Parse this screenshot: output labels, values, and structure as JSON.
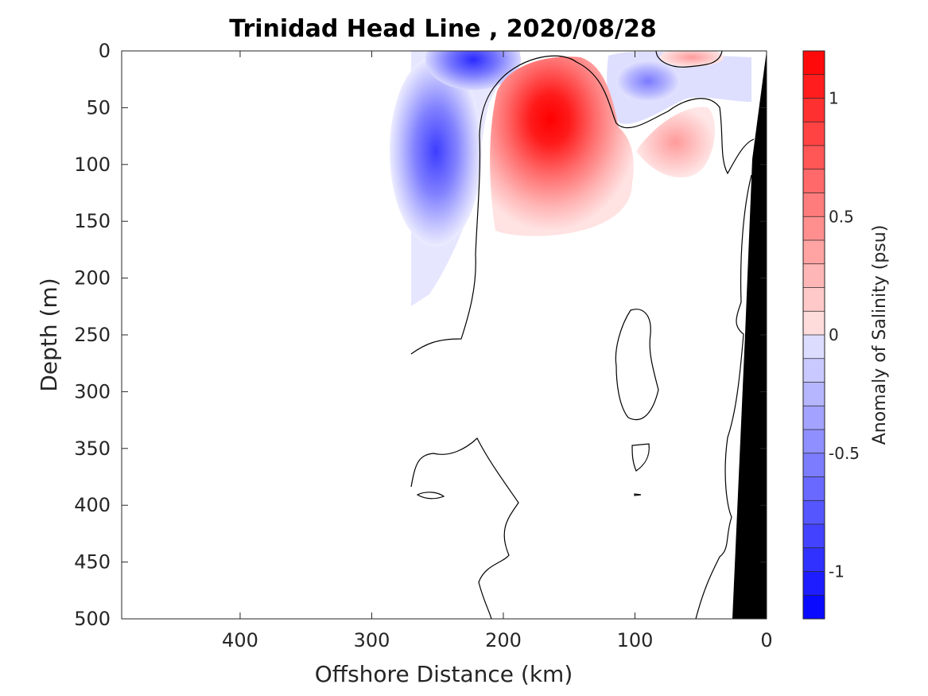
{
  "chart_data": {
    "type": "heatmap",
    "title": "Trinidad Head Line , 2020/08/28",
    "xlabel": "Offshore Distance (km)",
    "ylabel": "Depth (m)",
    "xlim": [
      490,
      0
    ],
    "ylim": [
      500,
      0
    ],
    "x_ticks": [
      "400",
      "300",
      "200",
      "100",
      "0"
    ],
    "y_ticks": [
      "0",
      "50",
      "100",
      "150",
      "200",
      "250",
      "300",
      "350",
      "400",
      "450",
      "500"
    ],
    "colorbar": {
      "label": "Anomaly of Salinity (psu)",
      "range": [
        -1.2,
        1.2
      ],
      "levels": 24,
      "ticks": [
        "1",
        "0.5",
        "0",
        "-0.5",
        "-1"
      ],
      "colors": {
        "negative": "#0000ff",
        "zero": "#ffffff",
        "positive": "#ff0000"
      }
    },
    "data_extent_km": [
      270,
      0
    ],
    "features": [
      {
        "sign": "negative",
        "center_km": 250,
        "center_depth_m": 85,
        "peak": -0.85
      },
      {
        "sign": "negative",
        "center_km": 215,
        "center_depth_m": 5,
        "peak": -0.9
      },
      {
        "sign": "negative",
        "center_km": 90,
        "center_depth_m": 25,
        "peak": -0.55
      },
      {
        "sign": "positive",
        "center_km": 170,
        "center_depth_m": 70,
        "peak": 1.15
      },
      {
        "sign": "positive",
        "center_km": 60,
        "center_depth_m": 5,
        "peak": 0.35
      },
      {
        "sign": "positive",
        "center_km": 60,
        "center_depth_m": 65,
        "peak": 0.2
      }
    ],
    "bathymetry_color": "#000000"
  }
}
